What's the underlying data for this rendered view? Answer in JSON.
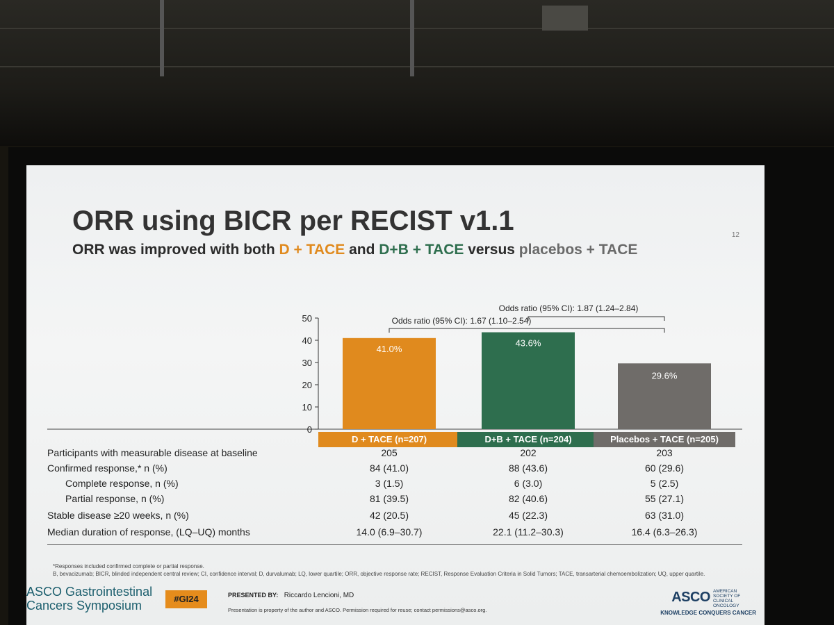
{
  "slide": {
    "title": "ORR using BICR per RECIST v1.1",
    "subtitle_parts": [
      "ORR was improved with both ",
      "D + TACE",
      " and ",
      "D+B + TACE",
      " versus ",
      "placebos + TACE"
    ],
    "page_number": "12"
  },
  "chart_data": {
    "type": "bar",
    "categories": [
      "D + TACE (n=207)",
      "D+B + TACE (n=204)",
      "Placebos + TACE (n=205)"
    ],
    "values": [
      41.0,
      43.6,
      29.6
    ],
    "data_labels": [
      "41.0%",
      "43.6%",
      "29.6%"
    ],
    "colors": [
      "#e08a1e",
      "#2e6e4e",
      "#6f6c69"
    ],
    "ylim": [
      0,
      50
    ],
    "yticks": [
      0,
      10,
      20,
      30,
      40,
      50
    ],
    "annotations": [
      {
        "text": "Odds ratio (95% CI): 1.67 (1.10–2.54)",
        "from": 0,
        "to": 1
      },
      {
        "text": "Odds ratio (95% CI): 1.87 (1.24–2.84)",
        "from": 1,
        "to": 2
      }
    ]
  },
  "table": {
    "rows": [
      {
        "label": "Participants with measurable disease at baseline",
        "indent": false,
        "values": [
          "205",
          "202",
          "203"
        ]
      },
      {
        "label": "Confirmed response,* n (%)",
        "indent": false,
        "values": [
          "84 (41.0)",
          "88 (43.6)",
          "60 (29.6)"
        ]
      },
      {
        "label": "Complete response, n (%)",
        "indent": true,
        "values": [
          "3 (1.5)",
          "6 (3.0)",
          "5 (2.5)"
        ]
      },
      {
        "label": "Partial response, n (%)",
        "indent": true,
        "values": [
          "81 (39.5)",
          "82 (40.6)",
          "55 (27.1)"
        ]
      },
      {
        "label": "Stable disease ≥20 weeks, n (%)",
        "indent": false,
        "values": [
          "42 (20.5)",
          "45 (22.3)",
          "63 (31.0)"
        ]
      },
      {
        "label": "Median duration of response, (LQ–UQ) months",
        "indent": false,
        "values": [
          "14.0 (6.9–30.7)",
          "22.1 (11.2–30.3)",
          "16.4 (6.3–26.3)"
        ]
      }
    ]
  },
  "footnotes": {
    "line1": "*Responses included confirmed complete or partial response.",
    "line2": "B, bevacizumab; BICR, blinded independent central review; CI, confidence interval; D, durvalumab; LQ, lower quartile; ORR, objective response rate; RECIST, Response Evaluation Criteria in Solid Tumors; TACE, transarterial chemoembolization; UQ, upper quartile."
  },
  "footer": {
    "symposium_line1": "ASCO Gastrointestinal",
    "symposium_line2": "Cancers Symposium",
    "hashtag": "#GI24",
    "presented_by_label": "PRESENTED BY:",
    "presenter": "Riccardo Lencioni, MD",
    "property_note": "Presentation is property of the author and ASCO. Permission required for reuse; contact permissions@asco.org.",
    "asco_logo": "ASCO",
    "asco_society": "AMERICAN SOCIETY OF CLINICAL ONCOLOGY",
    "tagline": "KNOWLEDGE CONQUERS CANCER"
  }
}
